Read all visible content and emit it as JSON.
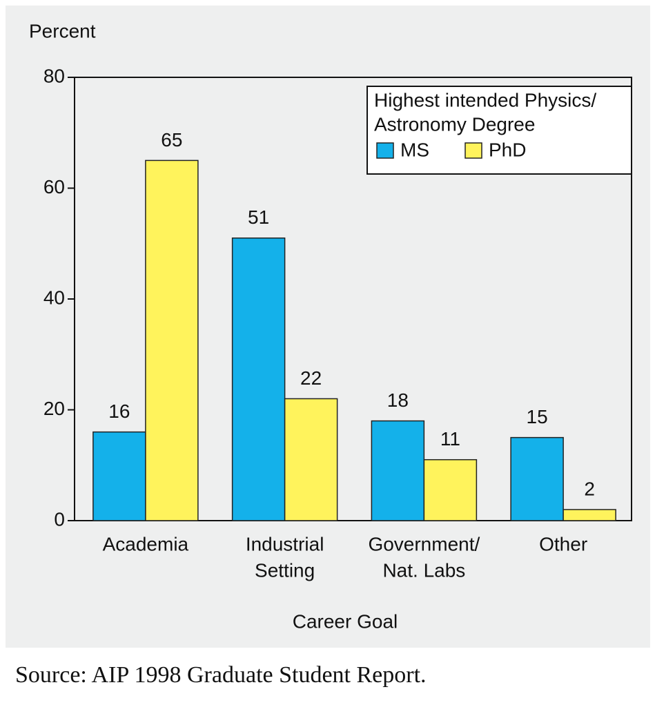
{
  "chart_data": {
    "type": "bar",
    "y_label": "Percent",
    "x_label": "Career Goal",
    "source": "Source: AIP 1998 Graduate Student Report.",
    "legend_title": [
      "Highest intended Physics/",
      "Astronomy Degree"
    ],
    "categories": [
      [
        "Academia"
      ],
      [
        "Industrial",
        "Setting"
      ],
      [
        "Government/",
        "Nat. Labs"
      ],
      [
        "Other"
      ]
    ],
    "series": [
      {
        "name": "MS",
        "color": "#14b1ea",
        "values": [
          16,
          51,
          18,
          15
        ]
      },
      {
        "name": "PhD",
        "color": "#fff35c",
        "values": [
          65,
          22,
          11,
          2
        ]
      }
    ],
    "ylim": [
      0,
      80
    ],
    "yticks": [
      0,
      20,
      40,
      60,
      80
    ],
    "legend": "upper right"
  }
}
